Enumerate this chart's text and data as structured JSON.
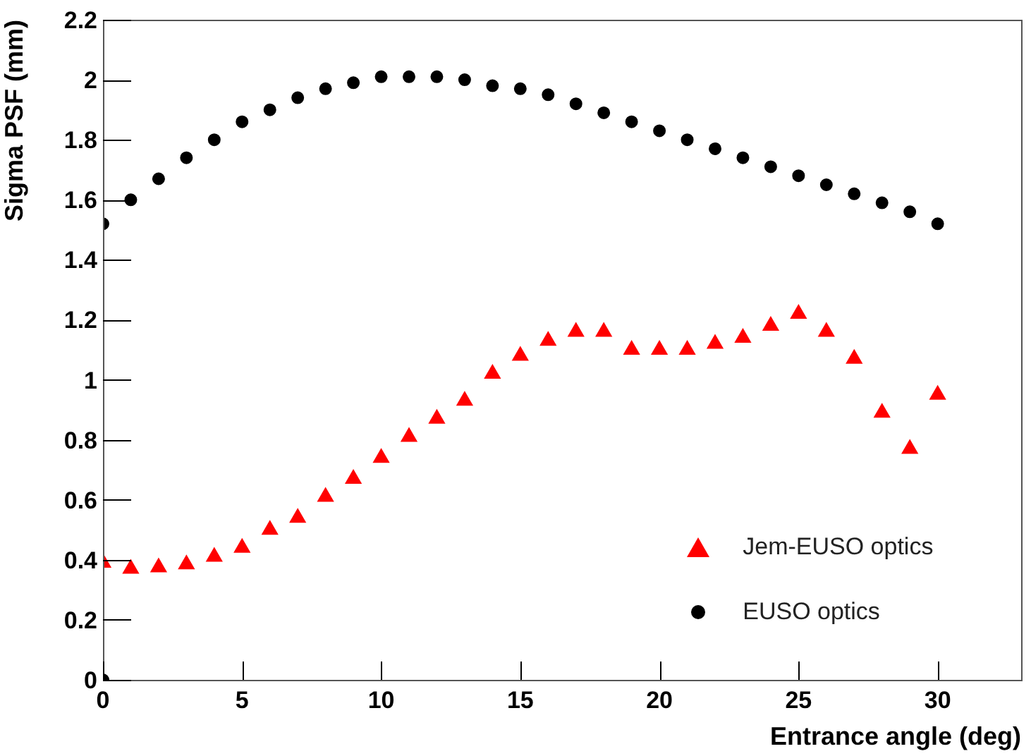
{
  "chart_data": {
    "type": "scatter",
    "xlabel": "Entrance angle (deg)",
    "ylabel": "Sigma PSF (mm)",
    "xlim": [
      0,
      33
    ],
    "ylim": [
      0,
      2.2
    ],
    "xticks": [
      0,
      5,
      10,
      15,
      20,
      25,
      30
    ],
    "yticks": [
      0,
      0.2,
      0.4,
      0.6,
      0.8,
      1,
      1.2,
      1.4,
      1.6,
      1.8,
      2,
      2.2
    ],
    "grid": false,
    "legend": "bottom right",
    "series": [
      {
        "name": "Jem-EUSO optics",
        "color": "#ff0000",
        "marker": "triangle",
        "x": [
          0,
          1,
          2,
          3,
          4,
          5,
          6,
          7,
          8,
          9,
          10,
          11,
          12,
          13,
          14,
          15,
          16,
          17,
          18,
          19,
          20,
          21,
          22,
          23,
          24,
          25,
          26,
          27,
          28,
          29,
          30
        ],
        "values": [
          0.39,
          0.37,
          0.375,
          0.385,
          0.41,
          0.44,
          0.5,
          0.54,
          0.61,
          0.67,
          0.74,
          0.81,
          0.87,
          0.93,
          1.02,
          1.08,
          1.13,
          1.16,
          1.16,
          1.1,
          1.1,
          1.1,
          1.12,
          1.14,
          1.18,
          1.22,
          1.16,
          1.07,
          0.89,
          0.77,
          0.95
        ]
      },
      {
        "name": "EUSO optics",
        "color": "#000000",
        "marker": "circle",
        "x": [
          0,
          0,
          1,
          2,
          3,
          4,
          5,
          6,
          7,
          8,
          9,
          10,
          11,
          12,
          13,
          14,
          15,
          16,
          17,
          18,
          19,
          20,
          21,
          22,
          23,
          24,
          25,
          26,
          27,
          28,
          29,
          30
        ],
        "values": [
          0,
          1.52,
          1.6,
          1.67,
          1.74,
          1.8,
          1.86,
          1.9,
          1.94,
          1.97,
          1.99,
          2.01,
          2.01,
          2.01,
          2.0,
          1.98,
          1.97,
          1.95,
          1.92,
          1.89,
          1.86,
          1.83,
          1.8,
          1.77,
          1.74,
          1.71,
          1.68,
          1.65,
          1.62,
          1.59,
          1.56,
          1.52
        ]
      }
    ]
  }
}
